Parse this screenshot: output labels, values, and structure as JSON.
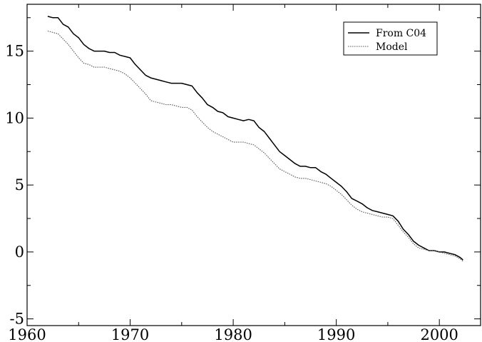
{
  "chart_data": {
    "type": "line",
    "title": "",
    "xlabel": "",
    "ylabel": "",
    "xlim": [
      1960,
      2004
    ],
    "ylim": [
      -5.5,
      18.5
    ],
    "grid": false,
    "legend_position": "top-right",
    "x_ticks": [
      1960,
      1970,
      1980,
      1990,
      2000
    ],
    "x_tick_labels": [
      "1960",
      "1970",
      "1980",
      "1990",
      "2000"
    ],
    "y_ticks": [
      -5,
      0,
      5,
      10,
      15
    ],
    "y_tick_labels": [
      "-5",
      "0",
      "5",
      "10",
      "15"
    ],
    "series": [
      {
        "name": "From C04",
        "color": "#000000",
        "style": "solid",
        "x": [
          1962.0,
          1962.5,
          1963.0,
          1963.5,
          1964.0,
          1964.5,
          1965.0,
          1965.5,
          1966.0,
          1966.5,
          1967.0,
          1967.5,
          1968.0,
          1968.5,
          1969.0,
          1969.5,
          1970.0,
          1970.5,
          1971.0,
          1971.5,
          1972.0,
          1972.5,
          1973.0,
          1973.5,
          1974.0,
          1974.5,
          1975.0,
          1975.5,
          1976.0,
          1976.5,
          1977.0,
          1977.5,
          1978.0,
          1978.5,
          1979.0,
          1979.5,
          1980.0,
          1980.5,
          1981.0,
          1981.5,
          1982.0,
          1982.5,
          1983.0,
          1983.5,
          1984.0,
          1984.5,
          1985.0,
          1985.5,
          1986.0,
          1986.5,
          1987.0,
          1987.5,
          1988.0,
          1988.5,
          1989.0,
          1989.5,
          1990.0,
          1990.5,
          1991.0,
          1991.5,
          1992.0,
          1992.5,
          1993.0,
          1993.5,
          1994.0,
          1994.5,
          1995.0,
          1995.5,
          1996.0,
          1996.5,
          1997.0,
          1997.5,
          1998.0,
          1998.5,
          1999.0,
          1999.5,
          2000.0,
          2000.5,
          2001.0,
          2001.5,
          2002.0,
          2002.3
        ],
        "y": [
          17.6,
          17.5,
          17.5,
          17.0,
          16.8,
          16.3,
          16.0,
          15.5,
          15.2,
          15.0,
          15.0,
          15.0,
          14.9,
          14.9,
          14.7,
          14.6,
          14.5,
          14.0,
          13.6,
          13.2,
          13.0,
          12.9,
          12.8,
          12.7,
          12.6,
          12.6,
          12.6,
          12.5,
          12.4,
          11.9,
          11.5,
          11.0,
          10.8,
          10.5,
          10.4,
          10.1,
          10.0,
          9.9,
          9.8,
          9.9,
          9.8,
          9.3,
          9.0,
          8.5,
          8.0,
          7.5,
          7.2,
          6.9,
          6.6,
          6.4,
          6.4,
          6.3,
          6.3,
          6.0,
          5.8,
          5.5,
          5.2,
          4.9,
          4.5,
          4.0,
          3.8,
          3.6,
          3.3,
          3.1,
          3.0,
          2.9,
          2.8,
          2.7,
          2.3,
          1.7,
          1.3,
          0.8,
          0.5,
          0.3,
          0.1,
          0.1,
          0.0,
          0.0,
          -0.1,
          -0.2,
          -0.4,
          -0.6
        ]
      },
      {
        "name": "Model",
        "color": "#555555",
        "style": "dotted",
        "x": [
          1962.0,
          1962.5,
          1963.0,
          1963.5,
          1964.0,
          1964.5,
          1965.0,
          1965.5,
          1966.0,
          1966.5,
          1967.0,
          1967.5,
          1968.0,
          1968.5,
          1969.0,
          1969.5,
          1970.0,
          1970.5,
          1971.0,
          1971.5,
          1972.0,
          1972.5,
          1973.0,
          1973.5,
          1974.0,
          1974.5,
          1975.0,
          1975.5,
          1976.0,
          1976.5,
          1977.0,
          1977.5,
          1978.0,
          1978.5,
          1979.0,
          1979.5,
          1980.0,
          1980.5,
          1981.0,
          1981.5,
          1982.0,
          1982.5,
          1983.0,
          1983.5,
          1984.0,
          1984.5,
          1985.0,
          1985.5,
          1986.0,
          1986.5,
          1987.0,
          1987.5,
          1988.0,
          1988.5,
          1989.0,
          1989.5,
          1990.0,
          1990.5,
          1991.0,
          1991.5,
          1992.0,
          1992.5,
          1993.0,
          1993.5,
          1994.0,
          1994.5,
          1995.0,
          1995.5,
          1996.0,
          1996.5,
          1997.0,
          1997.5,
          1998.0,
          1998.5,
          1999.0,
          1999.5,
          2000.0,
          2000.5,
          2001.0,
          2001.5,
          2002.0,
          2002.3
        ],
        "y": [
          16.5,
          16.4,
          16.3,
          15.9,
          15.5,
          15.0,
          14.5,
          14.1,
          14.0,
          13.8,
          13.8,
          13.8,
          13.7,
          13.6,
          13.5,
          13.3,
          13.0,
          12.6,
          12.2,
          11.8,
          11.3,
          11.2,
          11.1,
          11.0,
          11.0,
          10.9,
          10.8,
          10.8,
          10.6,
          10.1,
          9.7,
          9.3,
          9.0,
          8.8,
          8.6,
          8.4,
          8.2,
          8.2,
          8.2,
          8.1,
          8.0,
          7.7,
          7.4,
          7.0,
          6.6,
          6.2,
          6.0,
          5.8,
          5.6,
          5.5,
          5.5,
          5.4,
          5.3,
          5.2,
          5.1,
          4.9,
          4.6,
          4.3,
          3.9,
          3.5,
          3.2,
          3.0,
          2.9,
          2.8,
          2.7,
          2.6,
          2.6,
          2.5,
          2.0,
          1.5,
          1.1,
          0.6,
          0.3,
          0.2,
          0.1,
          0.1,
          0.0,
          -0.1,
          -0.2,
          -0.3,
          -0.5,
          -0.7
        ]
      }
    ]
  }
}
